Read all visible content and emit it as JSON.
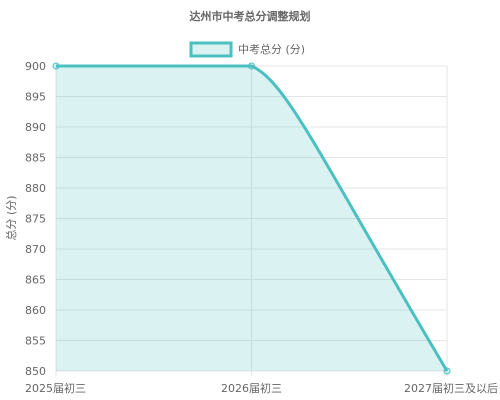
{
  "chart_data": {
    "type": "line",
    "title": "达州市中考总分调整规划",
    "xlabel": "",
    "ylabel": "总分 (分)",
    "categories": [
      "2025届初三",
      "2026届初三",
      "2027届初三及以后"
    ],
    "series": [
      {
        "name": "中考总分 (分)",
        "values": [
          900,
          900,
          850
        ]
      }
    ],
    "ylim": [
      850,
      900
    ],
    "y_ticks": [
      900,
      895,
      890,
      885,
      880,
      875,
      870,
      865,
      860,
      855,
      850
    ],
    "grid": true,
    "filled": true,
    "legend": "top",
    "colors": {
      "line": "#4BC0C0",
      "fill": "rgba(75,192,192,0.2)",
      "grid": "#e5e5e5",
      "text": "#666666"
    }
  }
}
